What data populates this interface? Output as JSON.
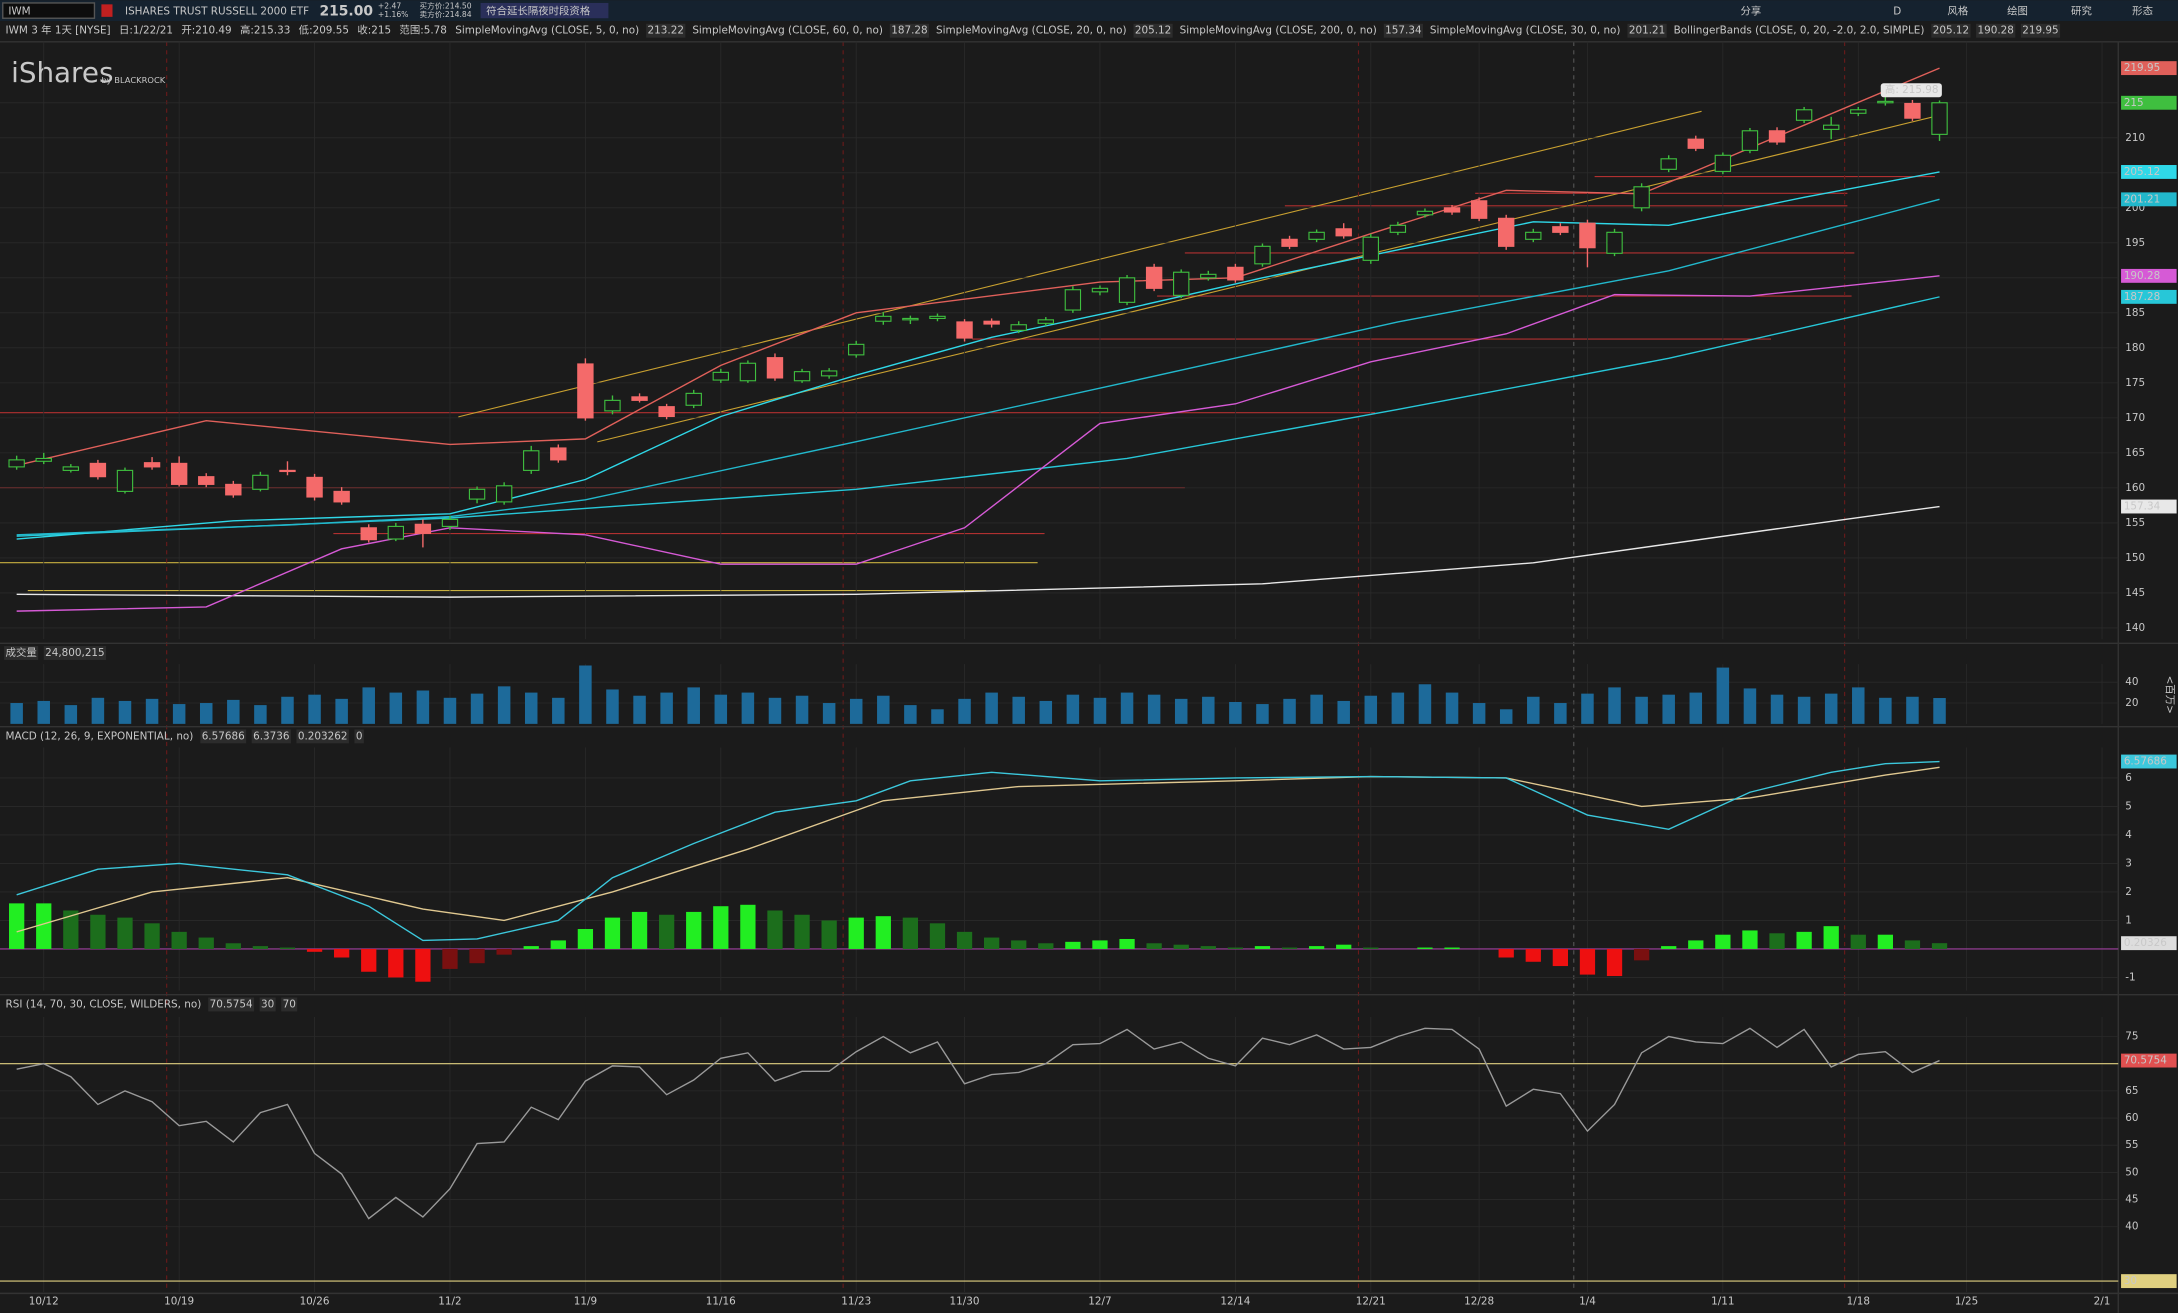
{
  "toolbar": {
    "symbol": "IWM",
    "name": "ISHARES TRUST RUSSELL 2000 ETF",
    "last": "215.00",
    "change": "+2.47",
    "change_pct": "+1.16%",
    "bid": "买方价:214.50",
    "ask": "卖方价:214.84",
    "extended": "符合延长隔夜时段资格",
    "period": "D",
    "buttons": [
      "分享",
      "风格",
      "绘图",
      "研究",
      "形态"
    ]
  },
  "chart_data": [
    {
      "type": "candlestick",
      "title": "IWM 3 年 1天 [NYSE]",
      "info": [
        "日:1/22/21",
        "开:210.49",
        "高:215.33",
        "低:209.55",
        "收:215",
        "范围:5.78"
      ],
      "watermark": "iShares",
      "watermark_sub": "by BLACKROCK",
      "high_callout": "高: 215.98",
      "last_close": 215,
      "up_color": "#3fbf3f",
      "down_color": "#f46a6a",
      "xlim": [
        -0.615,
        77.6
      ],
      "ylim": [
        138.4,
        223.7
      ],
      "yticks": [
        140,
        145,
        150,
        155,
        160,
        165,
        170,
        175,
        180,
        185,
        190,
        195,
        200,
        205,
        210,
        215
      ],
      "xticks": [
        {
          "value": 1,
          "label": "10/12"
        },
        {
          "value": 6,
          "label": "10/19"
        },
        {
          "value": 11,
          "label": "10/26"
        },
        {
          "value": 16,
          "label": "11/2"
        },
        {
          "value": 21,
          "label": "11/9"
        },
        {
          "value": 26,
          "label": "11/16"
        },
        {
          "value": 31,
          "label": "11/23"
        },
        {
          "value": 35,
          "label": "11/30"
        },
        {
          "value": 40,
          "label": "12/7"
        },
        {
          "value": 45,
          "label": "12/14"
        },
        {
          "value": 50,
          "label": "12/21"
        },
        {
          "value": 54,
          "label": "12/28"
        },
        {
          "value": 58,
          "label": "1/4"
        },
        {
          "value": 63,
          "label": "1/11"
        },
        {
          "value": 68,
          "label": "1/18"
        },
        {
          "value": 72,
          "label": "1/25"
        },
        {
          "value": 77,
          "label": "2/1"
        }
      ],
      "candles": [
        [
          163,
          164.6,
          162.6,
          164
        ],
        [
          163.8,
          165,
          163.4,
          164.2
        ],
        [
          162.5,
          163.4,
          162.2,
          163
        ],
        [
          163.5,
          164,
          161.2,
          161.6
        ],
        [
          159.5,
          162.9,
          159.2,
          162.5
        ],
        [
          163.6,
          164.4,
          162.6,
          163
        ],
        [
          163.5,
          164.5,
          160.2,
          160.5
        ],
        [
          161.6,
          162.1,
          160.1,
          160.5
        ],
        [
          160.5,
          161,
          158.6,
          159
        ],
        [
          159.8,
          162.3,
          159.5,
          161.8
        ],
        [
          162.5,
          163.8,
          161.8,
          162.4
        ],
        [
          161.5,
          162,
          158.2,
          158.7
        ],
        [
          159.5,
          160.1,
          157.6,
          158
        ],
        [
          154.3,
          154.8,
          152.2,
          152.6
        ],
        [
          152.7,
          155,
          152.4,
          154.5
        ],
        [
          154.8,
          155.5,
          151.5,
          153.5
        ],
        [
          154.5,
          156,
          154,
          155.5
        ],
        [
          158.4,
          160.2,
          157.8,
          159.8
        ],
        [
          158,
          160.8,
          157.6,
          160.3
        ],
        [
          162.5,
          166,
          162,
          165.3
        ],
        [
          165.7,
          166.2,
          163.6,
          164
        ],
        [
          177.7,
          178.5,
          169.6,
          170
        ],
        [
          171,
          173.2,
          170.5,
          172.5
        ],
        [
          173,
          173.5,
          172.2,
          172.5
        ],
        [
          171.6,
          172,
          169.8,
          170.2
        ],
        [
          171.8,
          174,
          171.4,
          173.5
        ],
        [
          175.4,
          177,
          175,
          176.5
        ],
        [
          175.3,
          178.2,
          175,
          177.8
        ],
        [
          178.6,
          179.2,
          175.3,
          175.7
        ],
        [
          175.3,
          177,
          175,
          176.6
        ],
        [
          176,
          177.1,
          175.6,
          176.7
        ],
        [
          179,
          181,
          178.6,
          180.5
        ],
        [
          183.8,
          185.1,
          183.3,
          184.5
        ],
        [
          184,
          184.6,
          183.4,
          184.2
        ],
        [
          184.2,
          184.9,
          183.8,
          184.5
        ],
        [
          183.7,
          184.1,
          180.9,
          181.4
        ],
        [
          183.8,
          184.2,
          182.9,
          183.4
        ],
        [
          182.5,
          183.8,
          182.1,
          183.3
        ],
        [
          183.5,
          184.4,
          183.1,
          184
        ],
        [
          185.4,
          188.8,
          185,
          188.3
        ],
        [
          188,
          188.9,
          187.5,
          188.5
        ],
        [
          186.5,
          190.4,
          186.1,
          190
        ],
        [
          191.5,
          192,
          188.1,
          188.5
        ],
        [
          187.5,
          191.2,
          187.1,
          190.8
        ],
        [
          190,
          191,
          189.6,
          190.5
        ],
        [
          191.5,
          192,
          189.3,
          189.7
        ],
        [
          192,
          194.9,
          191.6,
          194.5
        ],
        [
          195.5,
          196,
          194.1,
          194.5
        ],
        [
          195.5,
          196.9,
          195.1,
          196.5
        ],
        [
          197,
          197.8,
          195.6,
          196
        ],
        [
          192.5,
          196.3,
          192,
          195.8
        ],
        [
          196.5,
          198,
          196.1,
          197.5
        ],
        [
          199,
          199.9,
          198.6,
          199.5
        ],
        [
          200,
          200.4,
          199,
          199.4
        ],
        [
          201,
          201.5,
          198.1,
          198.5
        ],
        [
          198.5,
          199,
          194,
          194.5
        ],
        [
          195.5,
          197,
          195.1,
          196.5
        ],
        [
          197.3,
          197.8,
          196.1,
          196.5
        ],
        [
          197.8,
          198.3,
          191.5,
          194.3
        ],
        [
          193.5,
          197,
          193.1,
          196.5
        ],
        [
          200,
          203.5,
          199.5,
          203
        ],
        [
          205.5,
          207.5,
          205.1,
          207
        ],
        [
          209.8,
          210.3,
          208.1,
          208.5
        ],
        [
          205.2,
          207.9,
          204.8,
          207.5
        ],
        [
          208.2,
          211.4,
          207.8,
          211
        ],
        [
          211,
          211.5,
          209,
          209.4
        ],
        [
          212.5,
          214.4,
          212.1,
          214
        ],
        [
          211.2,
          213,
          209.8,
          211.8
        ],
        [
          213.5,
          214.4,
          213.1,
          214
        ],
        [
          215,
          215.98,
          214.6,
          215.2
        ],
        [
          214.9,
          215.4,
          212.4,
          212.8
        ],
        [
          210.49,
          215.33,
          209.55,
          215
        ]
      ],
      "studies": [
        {
          "name": "SimpleMovingAvg (CLOSE, 5, 0, no)",
          "value": 213.22,
          "color": "#dddddd"
        },
        {
          "name": "SimpleMovingAvg (CLOSE, 60, 0, no)",
          "value": 187.28,
          "color": "#27c7d8",
          "x": [
            0,
            16,
            31,
            41,
            51,
            61,
            71
          ],
          "values": [
            153.1,
            155.7,
            159.8,
            164.2,
            171.2,
            178.5,
            187.28
          ]
        },
        {
          "name": "SimpleMovingAvg (CLOSE, 20, 0, no)",
          "value": 205.12,
          "color": "#2fd8e8",
          "x": [
            0,
            8,
            16,
            21,
            26,
            31,
            36,
            41,
            46,
            51,
            56,
            61,
            66,
            71
          ],
          "values": [
            152.7,
            155.3,
            156.3,
            161.2,
            170.2,
            176.1,
            181.5,
            185.6,
            190,
            194,
            198,
            197.5,
            201.5,
            205.12
          ]
        },
        {
          "name": "SimpleMovingAvg (CLOSE, 200, 0, no)",
          "value": 157.34,
          "color": "#e8e8e8",
          "x": [
            0,
            16,
            31,
            46,
            56,
            66,
            71
          ],
          "values": [
            144.8,
            144.4,
            144.8,
            146.3,
            149.3,
            154.7,
            157.34
          ]
        },
        {
          "name": "SimpleMovingAvg (CLOSE, 30, 0, no)",
          "value": 201.21,
          "color": "#22b8cc",
          "x": [
            0,
            10,
            16,
            21,
            31,
            41,
            51,
            61,
            71
          ],
          "values": [
            153.3,
            154.7,
            155.9,
            158.3,
            166.6,
            175.1,
            183.7,
            191,
            201.21
          ]
        },
        {
          "name": "BollingerBands (CLOSE, 0, 20, -2.0, 2.0, SIMPLE)",
          "bands": [
            {
              "value": 205.12,
              "color": "#dddddd"
            },
            {
              "value": 190.28,
              "color": "#d65ad6",
              "x": [
                0,
                7,
                12,
                16,
                21,
                26,
                31,
                35,
                40,
                45,
                50,
                55,
                59,
                64,
                71
              ],
              "values": [
                142.4,
                143,
                151.3,
                154.3,
                153.3,
                149.1,
                149.1,
                154.3,
                169.2,
                172,
                178,
                182,
                187.6,
                187.4,
                190.28
              ]
            },
            {
              "value": 219.95,
              "color": "#e0605a",
              "x": [
                0,
                7,
                16,
                21,
                26,
                31,
                40,
                45,
                50,
                55,
                60,
                66,
                71
              ],
              "values": [
                163.2,
                169.6,
                166.2,
                167,
                177.5,
                185,
                189.4,
                190,
                196.3,
                202.5,
                202,
                211.8,
                219.95
              ]
            }
          ]
        }
      ]
    },
    {
      "type": "bar",
      "title": "成交量",
      "last_label": "24,800,215",
      "unit": "<百万>",
      "color": "#1d6a9a",
      "ylim": [
        0,
        57.3
      ],
      "yticks": [
        20,
        40
      ],
      "values": [
        20,
        22,
        18,
        25,
        22,
        24,
        19,
        20,
        23,
        18,
        26,
        28,
        24,
        35,
        30,
        32,
        25,
        29,
        36,
        30,
        25,
        56,
        33,
        27,
        30,
        35,
        28,
        30,
        25,
        27,
        20,
        24,
        27,
        18,
        14,
        24,
        30,
        26,
        22,
        28,
        25,
        30,
        28,
        24,
        26,
        21,
        19,
        24,
        28,
        22,
        27,
        30,
        38,
        30,
        20,
        14,
        26,
        20,
        29,
        35,
        26,
        28,
        30,
        54,
        34,
        28,
        26,
        29,
        35,
        25,
        26,
        24.800215
      ]
    },
    {
      "type": "macd",
      "title": "MACD (12, 26, 9, EXPONENTIAL, no)",
      "value": 6.57686,
      "avg": 6.3736,
      "diff": 0.203262,
      "zero": 0,
      "hist_tag": {
        "value": 0.203262,
        "label": "0.20326"
      },
      "ylim": [
        -1.46,
        7.07
      ],
      "yticks": [
        -1,
        1,
        2,
        3,
        4,
        5,
        6
      ],
      "macd_color": "#3cc8dc",
      "avg_color": "#e0c890",
      "macd_x": [
        0,
        3,
        6,
        10,
        13,
        15,
        17,
        20,
        22,
        25,
        28,
        31,
        33,
        36,
        40,
        45,
        50,
        55,
        58,
        61,
        64,
        67,
        69,
        71
      ],
      "macd": [
        1.9,
        2.8,
        3.0,
        2.6,
        1.5,
        0.3,
        0.35,
        1.0,
        2.5,
        3.7,
        4.8,
        5.2,
        5.9,
        6.2,
        5.9,
        6.0,
        6.05,
        6.0,
        4.7,
        4.2,
        5.5,
        6.2,
        6.5,
        6.57686
      ],
      "avg_x": [
        0,
        5,
        10,
        15,
        18,
        22,
        27,
        32,
        37,
        45,
        50,
        55,
        60,
        64,
        69,
        71
      ],
      "avg_values": [
        0.6,
        2.0,
        2.5,
        1.4,
        1.0,
        2.0,
        3.5,
        5.2,
        5.7,
        5.9,
        6.05,
        6.0,
        5.0,
        5.3,
        6.1,
        6.3736
      ],
      "histogram": [
        1.6,
        1.6,
        1.35,
        1.2,
        1.1,
        0.9,
        0.6,
        0.4,
        0.2,
        0.1,
        0.05,
        -0.1,
        -0.3,
        -0.8,
        -1.0,
        -1.15,
        -0.7,
        -0.5,
        -0.2,
        0.1,
        0.3,
        0.7,
        1.1,
        1.3,
        1.2,
        1.3,
        1.5,
        1.55,
        1.35,
        1.2,
        1.0,
        1.1,
        1.15,
        1.1,
        0.9,
        0.6,
        0.4,
        0.3,
        0.2,
        0.25,
        0.3,
        0.35,
        0.2,
        0.15,
        0.1,
        0.05,
        0.1,
        0.05,
        0.1,
        0.15,
        0.05,
        0.0,
        0.05,
        0.05,
        0.0,
        -0.3,
        -0.45,
        -0.6,
        -0.9,
        -0.95,
        -0.4,
        0.1,
        0.3,
        0.5,
        0.65,
        0.55,
        0.6,
        0.8,
        0.5,
        0.5,
        0.3,
        0.203262
      ]
    },
    {
      "type": "line",
      "title": "RSI (14, 70, 30, CLOSE, WILDERS, no)",
      "value": 70.5754,
      "oversold": 30,
      "overbought": 70,
      "color": "#9a9a9a",
      "level_color": "#e0d080",
      "ylim": [
        28.0,
        78.6
      ],
      "yticks": [
        40,
        45,
        50,
        55,
        60,
        65,
        70,
        75
      ],
      "values": [
        69,
        70,
        67.6,
        62.5,
        65,
        63,
        58.6,
        59.4,
        55.6,
        61,
        62.5,
        53.5,
        49.7,
        41.5,
        45.4,
        41.8,
        47,
        55.3,
        55.6,
        62,
        59.7,
        66.8,
        69.6,
        69.4,
        64.3,
        67,
        71,
        72,
        66.8,
        68.6,
        68.6,
        72.2,
        75,
        72,
        74,
        66.3,
        68,
        68.4,
        70,
        73.5,
        73.7,
        76.3,
        72.7,
        74,
        71,
        69.6,
        74.7,
        73.5,
        75.3,
        72.7,
        73,
        75,
        76.5,
        76.3,
        72.7,
        62.2,
        65.3,
        64.5,
        57.6,
        62.5,
        72,
        75,
        74,
        73.7,
        76.5,
        73,
        76.3,
        69.4,
        71.7,
        72.2,
        68.4,
        70.5754
      ]
    }
  ]
}
